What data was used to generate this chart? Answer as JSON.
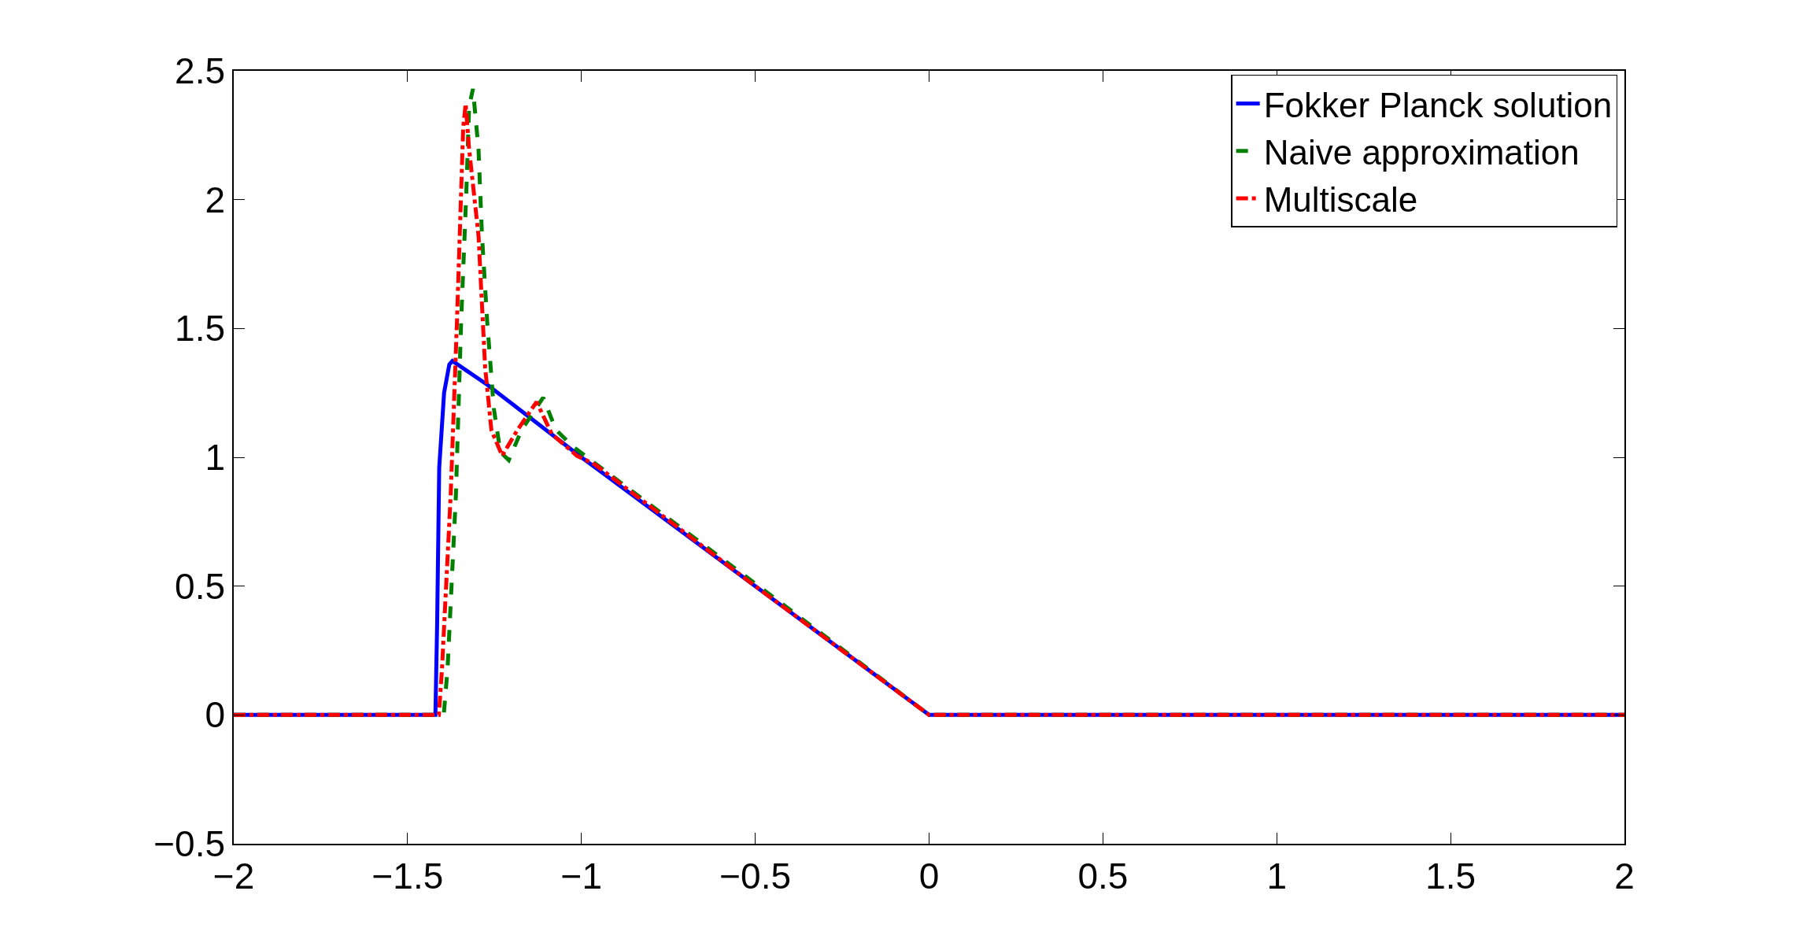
{
  "chart_data": {
    "type": "line",
    "xlim": [
      -2,
      2
    ],
    "xticks": [
      {
        "value": -2,
        "label": "−2"
      },
      {
        "value": -1.5,
        "label": "−1.5"
      },
      {
        "value": -1,
        "label": "−1"
      },
      {
        "value": -0.5,
        "label": "−0.5"
      },
      0,
      0.5,
      1,
      1.5,
      2
    ],
    "ylim": [
      -0.5,
      2.5
    ],
    "yticks": [
      {
        "value": -0.5,
        "label": "−0.5"
      },
      0,
      0.5,
      1,
      1.5,
      2,
      2.5
    ],
    "legend": "top right",
    "series": [
      {
        "name": "Fokker Planck solution",
        "color": "#0000ff",
        "line_style": "solid",
        "x": [
          -2,
          -1.42,
          -1.415,
          -1.409,
          -1.395,
          -1.38,
          -1.371,
          -1.271,
          -1.0,
          -0.5,
          0,
          2
        ],
        "values": [
          0,
          0,
          0.35,
          0.96,
          1.25,
          1.36,
          1.374,
          1.282,
          1.0,
          0.5,
          0,
          0
        ]
      },
      {
        "name": "Naive approximation",
        "color": "#008000",
        "line_style": "dashed",
        "x": [
          -2,
          -1.396,
          -1.385,
          -1.361,
          -1.346,
          -1.331,
          -1.323,
          -1.312,
          -1.296,
          -1.286,
          -1.271,
          -1.252,
          -1.233,
          -1.209,
          -1.172,
          -1.11,
          -1.073,
          -1.023,
          -0.973,
          -0.5,
          0,
          2
        ],
        "values": [
          0,
          0,
          0.18,
          0.855,
          1.526,
          2.03,
          2.36,
          2.43,
          2.196,
          1.861,
          1.526,
          1.19,
          1.02,
          0.989,
          1.106,
          1.232,
          1.106,
          1.04,
          0.989,
          0.51,
          0,
          0
        ]
      },
      {
        "name": "Multiscale",
        "color": "#ff0000",
        "line_style": "dashdot",
        "x": [
          -2,
          -1.41,
          -1.401,
          -1.376,
          -1.358,
          -1.346,
          -1.34,
          -1.333,
          -1.323,
          -1.296,
          -1.277,
          -1.259,
          -1.228,
          -1.184,
          -1.129,
          -1.085,
          -1.013,
          -0.961,
          -0.5,
          0,
          2
        ],
        "values": [
          0,
          0,
          0.18,
          0.855,
          1.526,
          2.03,
          2.28,
          2.372,
          2.196,
          1.861,
          1.35,
          1.106,
          1.006,
          1.106,
          1.215,
          1.09,
          1.006,
          0.972,
          0.5,
          0,
          0
        ]
      }
    ]
  }
}
